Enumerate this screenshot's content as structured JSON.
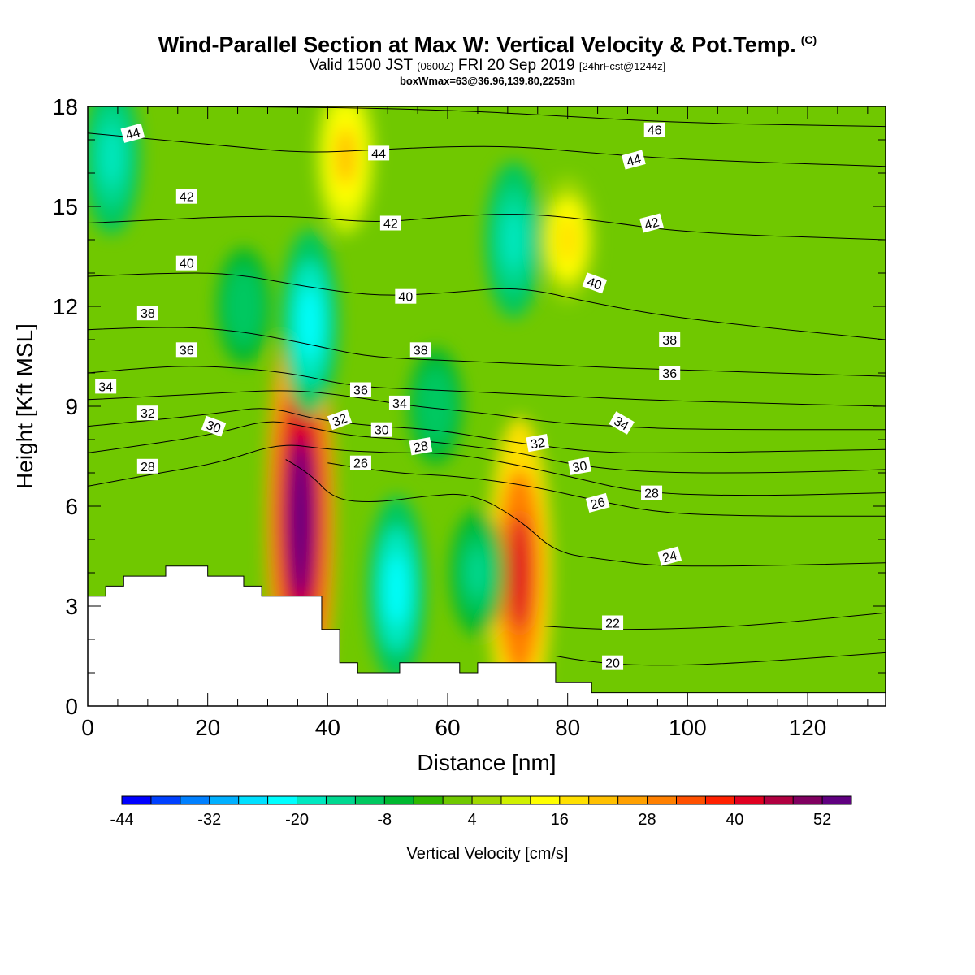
{
  "header": {
    "title": "Wind-Parallel Section at Max W: Vertical Velocity & Pot.Temp.",
    "title_mark": "(C)",
    "valid_prefix": "Valid 1500 JST",
    "valid_utc": "(0600Z)",
    "valid_date": "FRI 20 Sep 2019",
    "forecast": "[24hrFcst@1244z]",
    "box_info": "boxWmax=63@36.96,139.80,2253m"
  },
  "chart_data": {
    "type": "heatmap",
    "xlabel": "Distance [nm]",
    "ylabel": "Height [Kft MSL]",
    "xlim": [
      0,
      133
    ],
    "ylim": [
      0,
      18
    ],
    "x_ticks": [
      0,
      20,
      40,
      60,
      80,
      100,
      120
    ],
    "y_ticks": [
      0,
      3,
      6,
      9,
      12,
      15,
      18
    ],
    "colorbar": {
      "label": "Vertical Velocity [cm/s]",
      "tick_labels": [
        "-44",
        "-32",
        "-20",
        "-8",
        "4",
        "16",
        "28",
        "40",
        "52"
      ],
      "min": -44,
      "max": 56,
      "colors": [
        "#0000ff",
        "#0040ff",
        "#0080ff",
        "#00b0ff",
        "#00e0ff",
        "#00ffff",
        "#00e8c0",
        "#00d890",
        "#00c860",
        "#00b830",
        "#30b800",
        "#70c800",
        "#a0d800",
        "#d0f000",
        "#ffff00",
        "#ffe000",
        "#ffc000",
        "#ffa000",
        "#ff8000",
        "#ff5000",
        "#ff2000",
        "#e00020",
        "#b00040",
        "#800060",
        "#600080"
      ]
    },
    "terrain_profile": [
      [
        0,
        3.3
      ],
      [
        3,
        3.3
      ],
      [
        3,
        3.6
      ],
      [
        6,
        3.6
      ],
      [
        6,
        3.9
      ],
      [
        13,
        3.9
      ],
      [
        13,
        4.2
      ],
      [
        20,
        4.2
      ],
      [
        20,
        3.9
      ],
      [
        26,
        3.9
      ],
      [
        26,
        3.6
      ],
      [
        29,
        3.6
      ],
      [
        29,
        3.3
      ],
      [
        39,
        3.3
      ],
      [
        39,
        2.3
      ],
      [
        42,
        2.3
      ],
      [
        42,
        1.3
      ],
      [
        45,
        1.3
      ],
      [
        45,
        1.0
      ],
      [
        52,
        1.0
      ],
      [
        52,
        1.3
      ],
      [
        62,
        1.3
      ],
      [
        62,
        1.0
      ],
      [
        65,
        1.0
      ],
      [
        65,
        1.3
      ],
      [
        78,
        1.3
      ],
      [
        78,
        0.7
      ],
      [
        84,
        0.7
      ],
      [
        84,
        0.4
      ],
      [
        133,
        0.4
      ]
    ],
    "vertical_velocity_features": [
      {
        "x": 35.5,
        "y": 5.6,
        "value": 56
      },
      {
        "x": 72,
        "y": 4.0,
        "value": 40
      },
      {
        "x": 51.5,
        "y": 3.5,
        "value": -24
      },
      {
        "x": 65,
        "y": 4.0,
        "value": -16
      },
      {
        "x": 37,
        "y": 11.5,
        "value": -24
      },
      {
        "x": 71,
        "y": 14,
        "value": -20
      },
      {
        "x": 4,
        "y": 16.5,
        "value": -20
      },
      {
        "x": 58,
        "y": 9,
        "value": -12
      },
      {
        "x": 26,
        "y": 12,
        "value": -12
      },
      {
        "x": 43,
        "y": 16.5,
        "value": 20
      },
      {
        "x": 80,
        "y": 14,
        "value": 16
      }
    ],
    "theta_contours": [
      {
        "level": 20,
        "points": [
          [
            78,
            1.5
          ],
          [
            84,
            1.3
          ],
          [
            95,
            1.2
          ],
          [
            110,
            1.3
          ],
          [
            133,
            1.6
          ]
        ]
      },
      {
        "level": 22,
        "points": [
          [
            76,
            2.4
          ],
          [
            84,
            2.3
          ],
          [
            95,
            2.3
          ],
          [
            110,
            2.4
          ],
          [
            133,
            2.8
          ]
        ]
      },
      {
        "level": 24,
        "points": [
          [
            33,
            7.4
          ],
          [
            37,
            7.0
          ],
          [
            41,
            6.2
          ],
          [
            48,
            6.1
          ],
          [
            56,
            6.3
          ],
          [
            64,
            6.4
          ],
          [
            72,
            5.6
          ],
          [
            78,
            4.6
          ],
          [
            86,
            4.4
          ],
          [
            95,
            4.2
          ],
          [
            110,
            4.2
          ],
          [
            133,
            4.3
          ]
        ]
      },
      {
        "level": 26,
        "points": [
          [
            40,
            7.3
          ],
          [
            50,
            7.0
          ],
          [
            62,
            6.9
          ],
          [
            74,
            6.6
          ],
          [
            84,
            6.2
          ],
          [
            95,
            5.8
          ],
          [
            110,
            5.7
          ],
          [
            133,
            5.7
          ]
        ]
      },
      {
        "level": 28,
        "points": [
          [
            0,
            6.6
          ],
          [
            12,
            7.0
          ],
          [
            22,
            7.3
          ],
          [
            32,
            7.9
          ],
          [
            40,
            7.7
          ],
          [
            50,
            7.6
          ],
          [
            60,
            7.6
          ],
          [
            70,
            7.3
          ],
          [
            80,
            6.9
          ],
          [
            92,
            6.4
          ],
          [
            110,
            6.3
          ],
          [
            133,
            6.4
          ]
        ]
      },
      {
        "level": 30,
        "points": [
          [
            0,
            7.6
          ],
          [
            12,
            7.9
          ],
          [
            22,
            8.2
          ],
          [
            30,
            8.6
          ],
          [
            36,
            8.4
          ],
          [
            44,
            8.1
          ],
          [
            54,
            8.0
          ],
          [
            64,
            7.8
          ],
          [
            72,
            7.6
          ],
          [
            82,
            7.2
          ],
          [
            95,
            7.0
          ],
          [
            115,
            7.0
          ],
          [
            133,
            7.1
          ]
        ]
      },
      {
        "level": 32,
        "points": [
          [
            0,
            8.4
          ],
          [
            12,
            8.6
          ],
          [
            22,
            8.8
          ],
          [
            30,
            9.0
          ],
          [
            38,
            8.6
          ],
          [
            48,
            8.4
          ],
          [
            58,
            8.3
          ],
          [
            68,
            8.0
          ],
          [
            76,
            7.8
          ],
          [
            86,
            7.6
          ],
          [
            100,
            7.6
          ],
          [
            133,
            7.7
          ]
        ]
      },
      {
        "level": 34,
        "points": [
          [
            0,
            9.2
          ],
          [
            12,
            9.3
          ],
          [
            22,
            9.4
          ],
          [
            34,
            9.5
          ],
          [
            44,
            9.3
          ],
          [
            54,
            9.0
          ],
          [
            66,
            8.8
          ],
          [
            78,
            8.5
          ],
          [
            88,
            8.4
          ],
          [
            100,
            8.3
          ],
          [
            133,
            8.3
          ]
        ]
      },
      {
        "level": 36,
        "points": [
          [
            0,
            10.0
          ],
          [
            12,
            10.2
          ],
          [
            22,
            10.2
          ],
          [
            34,
            10.0
          ],
          [
            44,
            9.6
          ],
          [
            56,
            9.5
          ],
          [
            68,
            9.4
          ],
          [
            80,
            9.3
          ],
          [
            92,
            9.2
          ],
          [
            110,
            9.1
          ],
          [
            133,
            9.0
          ]
        ]
      },
      {
        "level": 38,
        "points": [
          [
            0,
            11.3
          ],
          [
            12,
            11.4
          ],
          [
            24,
            11.3
          ],
          [
            36,
            10.9
          ],
          [
            46,
            10.5
          ],
          [
            56,
            10.4
          ],
          [
            70,
            10.3
          ],
          [
            82,
            10.2
          ],
          [
            96,
            10.1
          ],
          [
            133,
            9.9
          ]
        ]
      },
      {
        "level": 40,
        "points": [
          [
            0,
            12.9
          ],
          [
            12,
            13.0
          ],
          [
            24,
            13.0
          ],
          [
            36,
            12.6
          ],
          [
            48,
            12.3
          ],
          [
            60,
            12.4
          ],
          [
            72,
            12.6
          ],
          [
            84,
            12.1
          ],
          [
            100,
            11.6
          ],
          [
            133,
            11.0
          ]
        ]
      },
      {
        "level": 42,
        "points": [
          [
            0,
            14.5
          ],
          [
            12,
            14.6
          ],
          [
            24,
            14.7
          ],
          [
            36,
            14.7
          ],
          [
            48,
            14.5
          ],
          [
            60,
            14.7
          ],
          [
            72,
            14.8
          ],
          [
            84,
            14.6
          ],
          [
            100,
            14.2
          ],
          [
            133,
            14.0
          ]
        ]
      },
      {
        "level": 44,
        "points": [
          [
            0,
            17.2
          ],
          [
            12,
            17.0
          ],
          [
            24,
            16.8
          ],
          [
            36,
            16.6
          ],
          [
            48,
            16.7
          ],
          [
            60,
            16.8
          ],
          [
            72,
            16.8
          ],
          [
            84,
            16.6
          ],
          [
            100,
            16.4
          ],
          [
            133,
            16.2
          ]
        ]
      },
      {
        "level": 46,
        "points": [
          [
            0,
            18.0
          ],
          [
            30,
            18.0
          ],
          [
            60,
            17.9
          ],
          [
            80,
            17.7
          ],
          [
            100,
            17.5
          ],
          [
            133,
            17.4
          ]
        ]
      }
    ],
    "contour_labels": [
      {
        "text": "44",
        "x": 7.5,
        "y": 17.2,
        "rot": 15
      },
      {
        "text": "42",
        "x": 16.5,
        "y": 15.3,
        "rot": 0
      },
      {
        "text": "40",
        "x": 16.5,
        "y": 13.3,
        "rot": 0
      },
      {
        "text": "38",
        "x": 10,
        "y": 11.8,
        "rot": 0
      },
      {
        "text": "36",
        "x": 16.5,
        "y": 10.7,
        "rot": 0
      },
      {
        "text": "34",
        "x": 3,
        "y": 9.6,
        "rot": 0
      },
      {
        "text": "32",
        "x": 10,
        "y": 8.8,
        "rot": 0
      },
      {
        "text": "30",
        "x": 21,
        "y": 8.4,
        "rot": -20
      },
      {
        "text": "28",
        "x": 10,
        "y": 7.2,
        "rot": 0
      },
      {
        "text": "44",
        "x": 48.5,
        "y": 16.6,
        "rot": 0
      },
      {
        "text": "42",
        "x": 50.5,
        "y": 14.5,
        "rot": 0
      },
      {
        "text": "40",
        "x": 53,
        "y": 12.3,
        "rot": 0
      },
      {
        "text": "38",
        "x": 55.5,
        "y": 10.7,
        "rot": 0
      },
      {
        "text": "36",
        "x": 45.5,
        "y": 9.5,
        "rot": 0
      },
      {
        "text": "34",
        "x": 52,
        "y": 9.1,
        "rot": 0
      },
      {
        "text": "32",
        "x": 42,
        "y": 8.6,
        "rot": 20
      },
      {
        "text": "30",
        "x": 49,
        "y": 8.3,
        "rot": 0
      },
      {
        "text": "28",
        "x": 55.5,
        "y": 7.8,
        "rot": 10
      },
      {
        "text": "26",
        "x": 45.5,
        "y": 7.3,
        "rot": 0
      },
      {
        "text": "46",
        "x": 94.5,
        "y": 17.3,
        "rot": 0
      },
      {
        "text": "44",
        "x": 91,
        "y": 16.4,
        "rot": 15
      },
      {
        "text": "42",
        "x": 94,
        "y": 14.5,
        "rot": 15
      },
      {
        "text": "40",
        "x": 84.5,
        "y": 12.7,
        "rot": -20
      },
      {
        "text": "38",
        "x": 97,
        "y": 11.0,
        "rot": 0
      },
      {
        "text": "36",
        "x": 97,
        "y": 10.0,
        "rot": 0
      },
      {
        "text": "34",
        "x": 89,
        "y": 8.5,
        "rot": -30
      },
      {
        "text": "32",
        "x": 75,
        "y": 7.9,
        "rot": 10
      },
      {
        "text": "30",
        "x": 82,
        "y": 7.2,
        "rot": 10
      },
      {
        "text": "28",
        "x": 94,
        "y": 6.4,
        "rot": 0
      },
      {
        "text": "26",
        "x": 85,
        "y": 6.1,
        "rot": 15
      },
      {
        "text": "24",
        "x": 97,
        "y": 4.5,
        "rot": 15
      },
      {
        "text": "22",
        "x": 87.5,
        "y": 2.5,
        "rot": 0
      },
      {
        "text": "20",
        "x": 87.5,
        "y": 1.3,
        "rot": 0
      }
    ]
  }
}
